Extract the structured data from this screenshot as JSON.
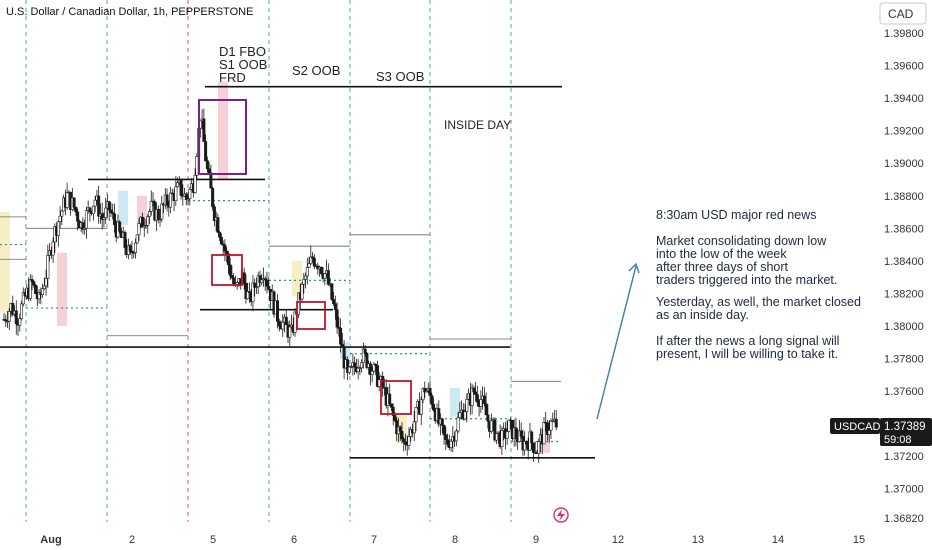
{
  "title": "U.S. Dollar / Canadian Dollar, 1h, PEPPERSTONE",
  "currency_button": "CAD",
  "price_label": {
    "symbol": "USDCAD",
    "price": "1.37389",
    "countdown": "59:08"
  },
  "annotations": {
    "d1_line1": "D1 FBO",
    "d1_line2": "S1 OOB",
    "d1_line3": "FRD",
    "s2": "S2 OOB",
    "s3": "S3 OOB",
    "inside_day": "INSIDE DAY"
  },
  "notes": {
    "n1": "8:30am USD major red news",
    "n2a": "Market consolidating down low",
    "n2b": "into the low of the week",
    "n2c": "after three days of short",
    "n2d": "traders triggered into the market.",
    "n3a": "Yesterday, as well, the market closed",
    "n3b": "as an inside day.",
    "n4a": "If after the news a long signal will",
    "n4b": "present, I will be willing to take it."
  },
  "colors": {
    "up_candle": "#1a1a1a",
    "down_candle": "#1a1a1a",
    "session_asia": "#f6efc6",
    "session_london": "#f7cfd6",
    "session_ny": "#cdeaf3",
    "box_purple": "#7a1f8c",
    "box_red": "#c0142b",
    "arrow": "#3b7fa8",
    "dotted_level": "#2a8fa0",
    "price_label_bg": "#1a1a1a"
  },
  "chart_data": {
    "type": "candlestick",
    "ylim": [
      1.3675,
      1.3995
    ],
    "y_ticks": [
      "1.39800",
      "1.39600",
      "1.39400",
      "1.39200",
      "1.39000",
      "1.38800",
      "1.38600",
      "1.38400",
      "1.38200",
      "1.38000",
      "1.37800",
      "1.37600",
      "1.37400",
      "1.37200",
      "1.37000",
      "1.36820"
    ],
    "x_ticks": [
      "Aug",
      "2",
      "5",
      "6",
      "7",
      "8",
      "9",
      "12",
      "13",
      "14",
      "15"
    ],
    "last_price": 1.37389,
    "levels": [
      {
        "name": "weekly-high",
        "value": 1.3947
      },
      {
        "name": "range-high",
        "value": 1.389
      },
      {
        "name": "range-mid",
        "value": 1.381
      },
      {
        "name": "range-low",
        "value": 1.3787
      },
      {
        "name": "week-low",
        "value": 1.3719
      }
    ],
    "close_path": [
      1.3804,
      1.3812,
      1.3805,
      1.3818,
      1.3826,
      1.3815,
      1.3832,
      1.3855,
      1.3868,
      1.388,
      1.3873,
      1.3862,
      1.387,
      1.3878,
      1.3866,
      1.3872,
      1.386,
      1.3852,
      1.3842,
      1.3858,
      1.3866,
      1.3872,
      1.3868,
      1.3875,
      1.388,
      1.3885,
      1.3878,
      1.3888,
      1.393,
      1.3895,
      1.387,
      1.3855,
      1.3838,
      1.3822,
      1.383,
      1.3815,
      1.3828,
      1.3835,
      1.382,
      1.3806,
      1.38,
      1.3795,
      1.3815,
      1.383,
      1.3842,
      1.3838,
      1.383,
      1.3812,
      1.379,
      1.3768,
      1.3775,
      1.3782,
      1.3778,
      1.377,
      1.3762,
      1.375,
      1.3738,
      1.3728,
      1.3735,
      1.3748,
      1.3762,
      1.3755,
      1.374,
      1.3728,
      1.3732,
      1.3745,
      1.3752,
      1.376,
      1.3755,
      1.3742,
      1.3735,
      1.373,
      1.3738,
      1.3733,
      1.3728,
      1.373,
      1.3724,
      1.3735,
      1.374,
      1.3739
    ]
  }
}
